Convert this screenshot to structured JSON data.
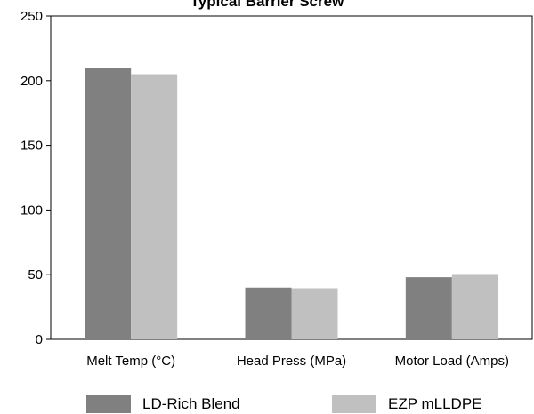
{
  "chart_data": {
    "type": "bar",
    "title": "Typical Barrier Screw",
    "categories": [
      "Melt Temp (°C)",
      "Head Press (MPa)",
      "Motor Load (Amps)"
    ],
    "series": [
      {
        "name": "LD-Rich Blend",
        "values": [
          210,
          40,
          48
        ],
        "color": "#808080"
      },
      {
        "name": "EZP mLLDPE",
        "values": [
          205,
          39.5,
          50.5
        ],
        "color": "#c0c0c0"
      }
    ],
    "ylim": [
      0,
      250
    ],
    "yticks": [
      0,
      50,
      100,
      150,
      200,
      250
    ],
    "xlabel": "",
    "ylabel": "",
    "grid": false,
    "legend_position": "bottom"
  }
}
